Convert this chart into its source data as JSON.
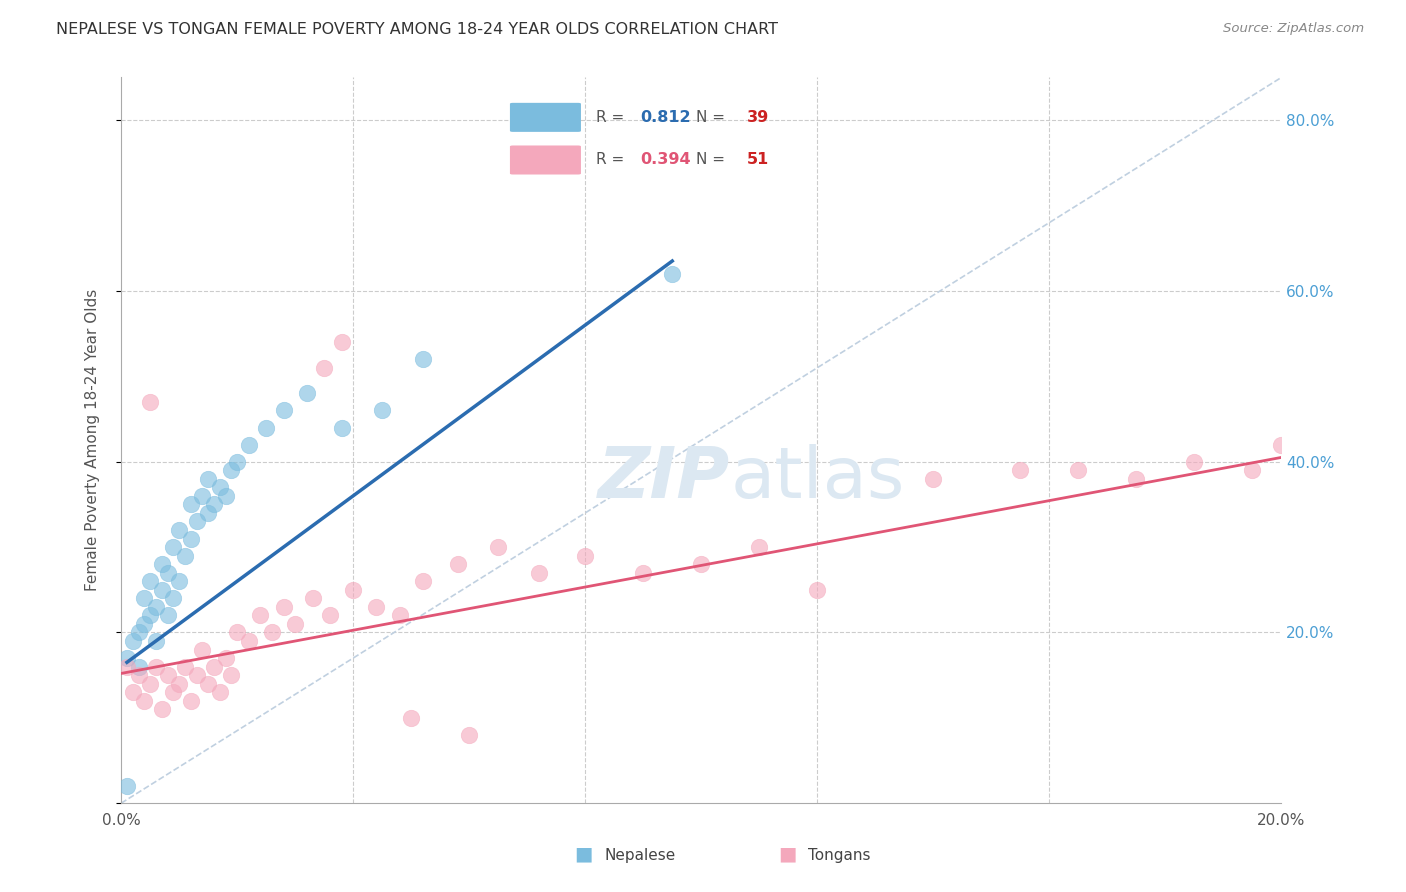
{
  "title": "NEPALESE VS TONGAN FEMALE POVERTY AMONG 18-24 YEAR OLDS CORRELATION CHART",
  "source": "Source: ZipAtlas.com",
  "ylabel": "Female Poverty Among 18-24 Year Olds",
  "xlim": [
    0.0,
    0.2
  ],
  "ylim": [
    0.0,
    0.85
  ],
  "nepalese_R": 0.812,
  "nepalese_N": 39,
  "tongan_R": 0.394,
  "tongan_N": 51,
  "blue_color": "#7bbcde",
  "pink_color": "#f4a8bc",
  "blue_line_color": "#2b6cb0",
  "pink_line_color": "#e05575",
  "diagonal_color": "#c0d0e0",
  "background_color": "#ffffff",
  "grid_color": "#cccccc",
  "right_axis_color": "#4c9fd4",
  "zipatlas_color": "#dce8f2",
  "title_color": "#333333",
  "source_color": "#888888",
  "axis_label_color": "#555555",
  "tick_color": "#555555",
  "nepalese_x": [
    0.001,
    0.002,
    0.003,
    0.003,
    0.004,
    0.004,
    0.005,
    0.005,
    0.006,
    0.006,
    0.007,
    0.007,
    0.008,
    0.008,
    0.009,
    0.009,
    0.01,
    0.01,
    0.011,
    0.012,
    0.012,
    0.013,
    0.014,
    0.015,
    0.015,
    0.016,
    0.017,
    0.018,
    0.019,
    0.02,
    0.022,
    0.025,
    0.028,
    0.032,
    0.038,
    0.045,
    0.052,
    0.095,
    0.001
  ],
  "nepalese_y": [
    0.17,
    0.19,
    0.16,
    0.2,
    0.21,
    0.24,
    0.22,
    0.26,
    0.19,
    0.23,
    0.25,
    0.28,
    0.22,
    0.27,
    0.24,
    0.3,
    0.26,
    0.32,
    0.29,
    0.31,
    0.35,
    0.33,
    0.36,
    0.34,
    0.38,
    0.35,
    0.37,
    0.36,
    0.39,
    0.4,
    0.42,
    0.44,
    0.46,
    0.48,
    0.44,
    0.46,
    0.52,
    0.62,
    0.02
  ],
  "tongan_x": [
    0.001,
    0.002,
    0.003,
    0.004,
    0.005,
    0.006,
    0.007,
    0.008,
    0.009,
    0.01,
    0.011,
    0.012,
    0.013,
    0.014,
    0.015,
    0.016,
    0.017,
    0.018,
    0.019,
    0.02,
    0.022,
    0.024,
    0.026,
    0.028,
    0.03,
    0.033,
    0.036,
    0.04,
    0.044,
    0.048,
    0.052,
    0.058,
    0.065,
    0.072,
    0.08,
    0.09,
    0.1,
    0.11,
    0.12,
    0.14,
    0.155,
    0.165,
    0.175,
    0.185,
    0.195,
    0.2,
    0.005,
    0.038,
    0.035,
    0.05,
    0.06
  ],
  "tongan_y": [
    0.16,
    0.13,
    0.15,
    0.12,
    0.14,
    0.16,
    0.11,
    0.15,
    0.13,
    0.14,
    0.16,
    0.12,
    0.15,
    0.18,
    0.14,
    0.16,
    0.13,
    0.17,
    0.15,
    0.2,
    0.19,
    0.22,
    0.2,
    0.23,
    0.21,
    0.24,
    0.22,
    0.25,
    0.23,
    0.22,
    0.26,
    0.28,
    0.3,
    0.27,
    0.29,
    0.27,
    0.28,
    0.3,
    0.25,
    0.38,
    0.39,
    0.39,
    0.38,
    0.4,
    0.39,
    0.42,
    0.47,
    0.54,
    0.51,
    0.1,
    0.08
  ],
  "nep_line_x0": 0.001,
  "nep_line_x1": 0.095,
  "nep_line_y0": 0.165,
  "nep_line_y1": 0.635,
  "ton_line_x0": 0.0,
  "ton_line_x1": 0.2,
  "ton_line_y0": 0.152,
  "ton_line_y1": 0.405
}
